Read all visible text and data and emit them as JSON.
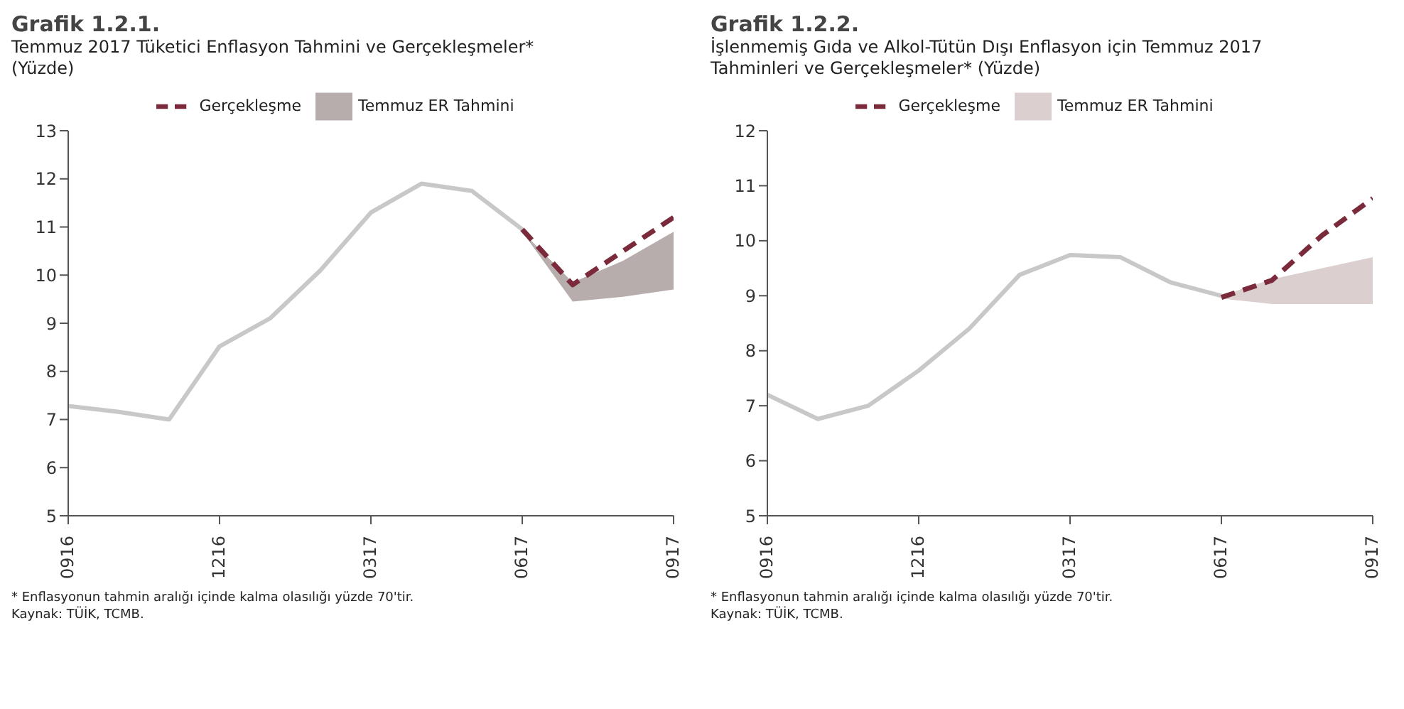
{
  "chart_data": [
    {
      "type": "line",
      "title": "Grafik 1.2.1.",
      "subtitle": "Temmuz 2017 Tüketici Enflasyon Tahmini ve Gerçekleşmeler* (Yüzde)",
      "categories": [
        "0916",
        null,
        null,
        "1216",
        null,
        null,
        "0317",
        null,
        null,
        "0617",
        null,
        null,
        "0917"
      ],
      "series": [
        {
          "type": "area",
          "name": "Temmuz ER Tahmini",
          "color": "#b8adad",
          "values": [
            null,
            null,
            null,
            null,
            null,
            null,
            null,
            null,
            null,
            null,
            null,
            null,
            null
          ],
          "lower": [
            null,
            null,
            null,
            null,
            null,
            null,
            null,
            null,
            null,
            10.9,
            9.45,
            9.55,
            9.7
          ],
          "upper": [
            null,
            null,
            null,
            null,
            null,
            null,
            null,
            null,
            null,
            10.9,
            9.85,
            10.3,
            10.9
          ]
        },
        {
          "color": "#c8c8c8",
          "line_style": "solid",
          "values": [
            7.28,
            7.16,
            7.0,
            8.52,
            9.1,
            10.1,
            11.3,
            11.9,
            11.75,
            10.95,
            null,
            null,
            null
          ]
        },
        {
          "name": "Gerçekleşme",
          "color": "#7a2a3a",
          "line_style": "dashed",
          "values": [
            null,
            null,
            null,
            null,
            null,
            null,
            null,
            null,
            null,
            10.95,
            9.8,
            10.5,
            11.2
          ]
        }
      ],
      "ylim": [
        5,
        13
      ],
      "yticks": [
        5,
        6,
        7,
        8,
        9,
        10,
        11,
        12,
        13
      ],
      "legend": "top",
      "marker": "none",
      "annotations": [
        "* Enflasyonun tahmin aralığı içinde kalma olasılığı yüzde 70'tir.",
        "Kaynak: TÜİK, TCMB."
      ]
    },
    {
      "type": "line",
      "title": "Grafik 1.2.2.",
      "subtitle": "İşlenmemiş Gıda ve Alkol-Tütün Dışı Enflasyon için Temmuz 2017 Tahminleri ve Gerçekleşmeler* (Yüzde)",
      "categories": [
        "0916",
        null,
        null,
        "1216",
        null,
        null,
        "0317",
        null,
        null,
        "0617",
        null,
        null,
        "0917"
      ],
      "series": [
        {
          "type": "area",
          "name": "Temmuz ER Tahmini",
          "color": "#dccfcf",
          "values": [
            null,
            null,
            null,
            null,
            null,
            null,
            null,
            null,
            null,
            null,
            null,
            null,
            null
          ],
          "lower": [
            null,
            null,
            null,
            null,
            null,
            null,
            null,
            null,
            null,
            8.95,
            8.85,
            8.85,
            8.85
          ],
          "upper": [
            null,
            null,
            null,
            null,
            null,
            null,
            null,
            null,
            null,
            9.0,
            9.3,
            9.5,
            9.7
          ]
        },
        {
          "color": "#c8c8c8",
          "line_style": "solid",
          "values": [
            7.2,
            6.76,
            7.0,
            7.64,
            8.4,
            9.38,
            9.74,
            9.7,
            9.24,
            9.0,
            null,
            null,
            null
          ]
        },
        {
          "name": "Gerçekleşme",
          "color": "#7a2a3a",
          "line_style": "dashed",
          "values": [
            null,
            null,
            null,
            null,
            null,
            null,
            null,
            null,
            null,
            8.97,
            9.28,
            10.1,
            10.77
          ]
        }
      ],
      "ylim": [
        5,
        12
      ],
      "yticks": [
        5,
        6,
        7,
        8,
        9,
        10,
        11,
        12
      ],
      "legend": "top",
      "marker": "none",
      "annotations": [
        "* Enflasyonun tahmin aralığı içinde kalma olasılığı yüzde 70'tir.",
        "Kaynak: TÜİK, TCMB."
      ]
    }
  ]
}
